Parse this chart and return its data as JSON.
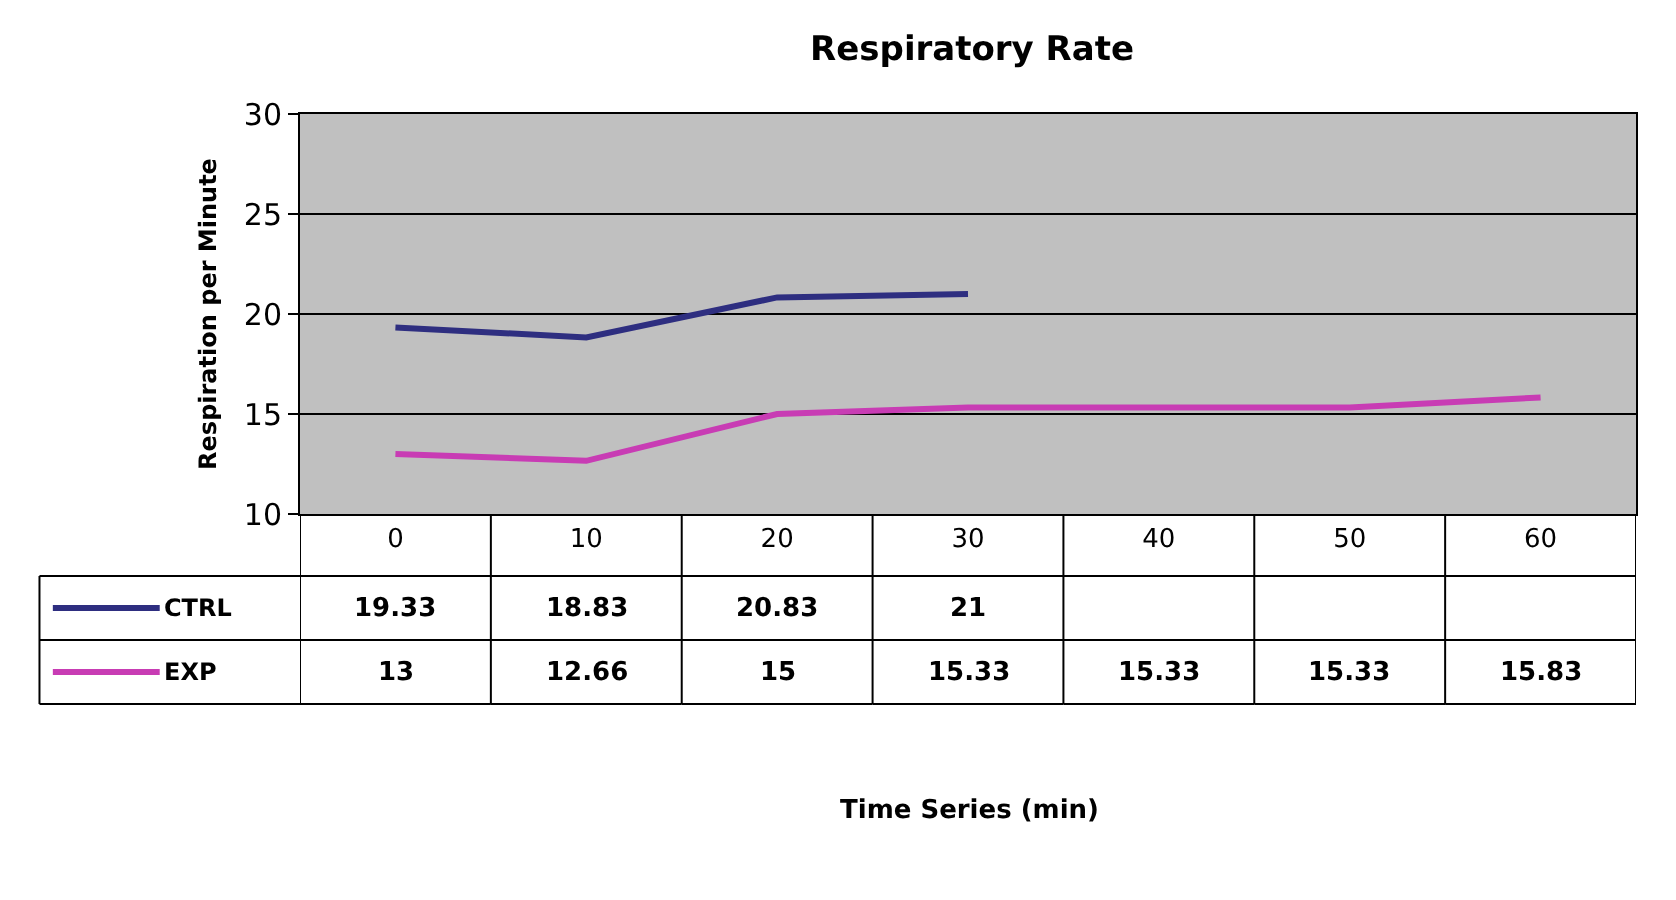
{
  "chart_data": {
    "type": "line",
    "title": "Respiratory Rate",
    "annotations": [
      "Time Series (min)"
    ],
    "ylabel": "Respiration per Minute",
    "categories": [
      "0",
      "10",
      "20",
      "30",
      "40",
      "50",
      "60"
    ],
    "series": [
      {
        "name": "CTRL",
        "color": "#2e2e80",
        "values": [
          19.33,
          18.83,
          20.83,
          21,
          null,
          null,
          null
        ]
      },
      {
        "name": "EXP",
        "color": "#c83cb4",
        "values": [
          13,
          12.66,
          15,
          15.33,
          15.33,
          15.33,
          15.83
        ]
      }
    ],
    "ylim": [
      10,
      30
    ],
    "yticks": [
      10,
      15,
      20,
      25,
      30
    ],
    "grid": "y",
    "data_labels": true,
    "legend": "bottom left",
    "marker": "none",
    "line_style": "solid"
  }
}
